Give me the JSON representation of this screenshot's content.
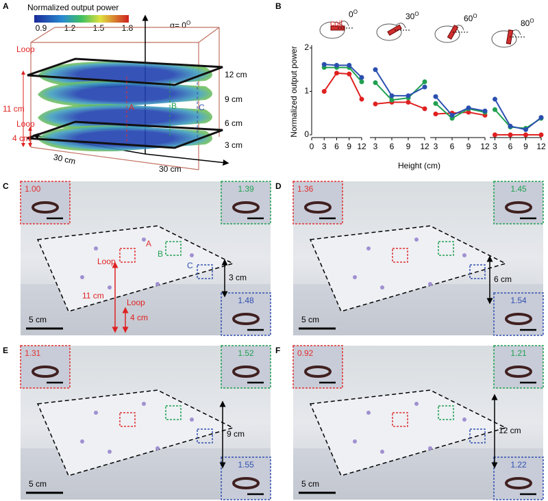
{
  "panel_a": {
    "letter": "A",
    "colorbar": {
      "title": "Normalized output power",
      "ticks": [
        "0.9",
        "1.2",
        "1.5",
        "1.8"
      ]
    },
    "alpha": "α= 0",
    "alpha_sup": "O",
    "loops": [
      "Loop",
      "Loop"
    ],
    "dims": [
      "11 cm",
      "4 cm"
    ],
    "lines": [
      "A",
      "B",
      "C"
    ],
    "heights": [
      "12 cm",
      "9 cm",
      "6 cm",
      "3 cm"
    ],
    "sides": [
      "30 cm",
      "30 cm"
    ]
  },
  "chart_data": {
    "type": "line",
    "letter": "B",
    "coil": "coil",
    "angle_sup": "O",
    "ylabel": "Normalized output power",
    "xlabel": "Height (cm)",
    "ylim": [
      0,
      2
    ],
    "yticks": [
      0,
      1,
      2
    ],
    "groups": [
      {
        "angle": "0",
        "xlim": [
          0,
          12
        ],
        "xticks": [
          0,
          3,
          6,
          9,
          12
        ],
        "x": [
          3,
          6,
          9,
          12
        ],
        "series": [
          {
            "color": "#e02020",
            "values": [
              1.0,
              1.42,
              1.4,
              0.82
            ]
          },
          {
            "color": "#20a050",
            "values": [
              1.55,
              1.55,
              1.55,
              1.22
            ]
          },
          {
            "color": "#2a4fb0",
            "values": [
              1.62,
              1.6,
              1.6,
              1.32
            ]
          }
        ]
      },
      {
        "angle": "30",
        "xlim": [
          2,
          12
        ],
        "xticks": [
          3,
          6,
          9,
          12
        ],
        "x": [
          3,
          6,
          9,
          12
        ],
        "series": [
          {
            "color": "#e02020",
            "values": [
              0.71,
              0.75,
              0.75,
              0.6
            ]
          },
          {
            "color": "#20a050",
            "values": [
              1.2,
              0.8,
              0.85,
              1.22
            ]
          },
          {
            "color": "#2a4fb0",
            "values": [
              1.5,
              0.9,
              0.9,
              1.1
            ]
          }
        ]
      },
      {
        "angle": "60",
        "xlim": [
          2,
          12
        ],
        "xticks": [
          3,
          6,
          9,
          12
        ],
        "x": [
          3,
          6,
          9,
          12
        ],
        "series": [
          {
            "color": "#e02020",
            "values": [
              0.48,
              0.5,
              0.52,
              0.45
            ]
          },
          {
            "color": "#20a050",
            "values": [
              0.72,
              0.38,
              0.6,
              0.52
            ]
          },
          {
            "color": "#2a4fb0",
            "values": [
              0.88,
              0.45,
              0.62,
              0.55
            ]
          }
        ]
      },
      {
        "angle": "80",
        "xlim": [
          2,
          12
        ],
        "xticks": [
          3,
          6,
          9,
          12
        ],
        "x": [
          3,
          6,
          9,
          12
        ],
        "series": [
          {
            "color": "#e02020",
            "values": [
              0,
              0,
              0,
              0
            ]
          },
          {
            "color": "#20a050",
            "values": [
              0.58,
              0.18,
              0.15,
              0.38
            ]
          },
          {
            "color": "#2a4fb0",
            "values": [
              0.82,
              0.2,
              0.12,
              0.4
            ]
          }
        ]
      }
    ]
  },
  "photos": [
    {
      "letter": "C",
      "insets": [
        "1.00",
        "1.39",
        "1.48"
      ],
      "height": "3 cm",
      "scale": "5 cm",
      "markers": [
        "A",
        "B",
        "C"
      ],
      "loops": [
        "Loop",
        "Loop"
      ],
      "dims": [
        "11 cm",
        "4 cm"
      ]
    },
    {
      "letter": "D",
      "insets": [
        "1.36",
        "1.45",
        "1.54"
      ],
      "height": "6 cm",
      "scale": "5 cm"
    },
    {
      "letter": "E",
      "insets": [
        "1.31",
        "1.52",
        "1.55"
      ],
      "height": "9 cm",
      "scale": "5 cm"
    },
    {
      "letter": "F",
      "insets": [
        "0.92",
        "1.21",
        "1.22"
      ],
      "height": "12 cm",
      "scale": "5 cm"
    }
  ]
}
